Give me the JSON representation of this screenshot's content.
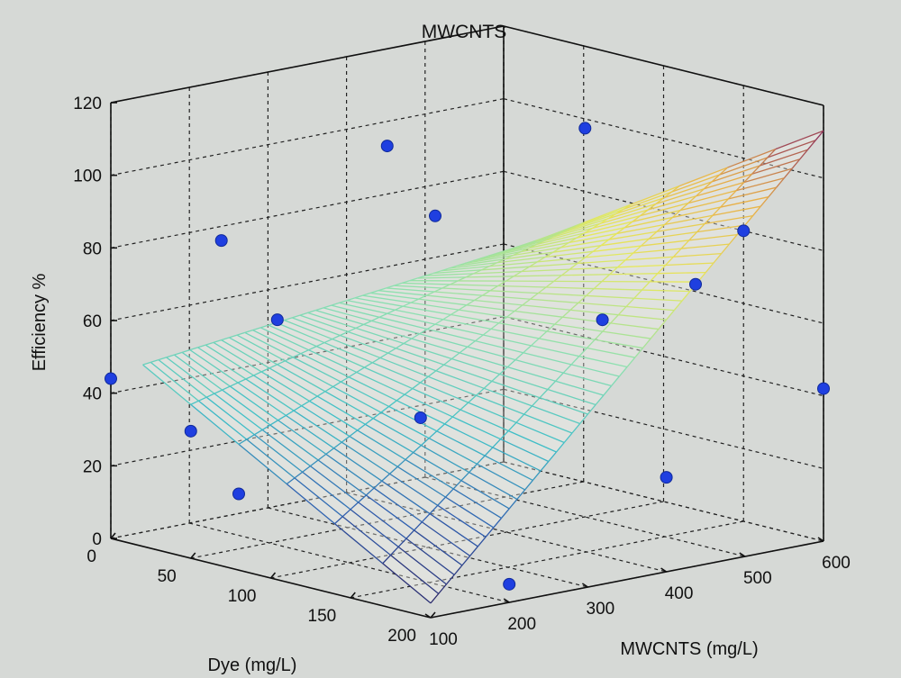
{
  "chart_data": {
    "type": "surface3d",
    "title": "MWCNTS",
    "xlabel": "Dye (mg/L)",
    "ylabel": "MWCNTS (mg/L)",
    "zlabel": "Efficiency %",
    "xlim": [
      0,
      200
    ],
    "ylim": [
      100,
      600
    ],
    "zlim": [
      0,
      120
    ],
    "xticks": [
      "0",
      "50",
      "100",
      "150",
      "200"
    ],
    "yticks": [
      "100",
      "200",
      "300",
      "400",
      "500",
      "600"
    ],
    "zticks": [
      "0",
      "20",
      "40",
      "60",
      "80",
      "100",
      "120"
    ],
    "grid": true,
    "surface": {
      "x_range": [
        20,
        200
      ],
      "y_range": [
        100,
        600
      ],
      "corners": {
        "x20_y100": 50,
        "x20_y600": 63,
        "x200_y100": 4,
        "x200_y600": 113
      },
      "colormap": [
        "#2a2566",
        "#2f5fb0",
        "#3fbfc7",
        "#8fe0b0",
        "#e6e85c",
        "#e8b048",
        "#8a2a5a"
      ]
    },
    "points": [
      {
        "x": 0,
        "y": 100,
        "z": 44
      },
      {
        "x": 50,
        "y": 100,
        "z": 35
      },
      {
        "x": 80,
        "y": 100,
        "z": 21
      },
      {
        "x": 20,
        "y": 200,
        "z": 80
      },
      {
        "x": 55,
        "y": 200,
        "z": 62
      },
      {
        "x": 120,
        "y": 250,
        "z": 40
      },
      {
        "x": 50,
        "y": 350,
        "z": 103
      },
      {
        "x": 80,
        "y": 350,
        "z": 87
      },
      {
        "x": 160,
        "y": 400,
        "z": 65
      },
      {
        "x": 200,
        "y": 400,
        "z": 26
      },
      {
        "x": 100,
        "y": 500,
        "z": 107
      },
      {
        "x": 150,
        "y": 600,
        "z": 80
      },
      {
        "x": 200,
        "y": 600,
        "z": 42
      },
      {
        "x": 120,
        "y": 600,
        "z": 62
      },
      {
        "x": 200,
        "y": 200,
        "z": 5
      }
    ]
  }
}
